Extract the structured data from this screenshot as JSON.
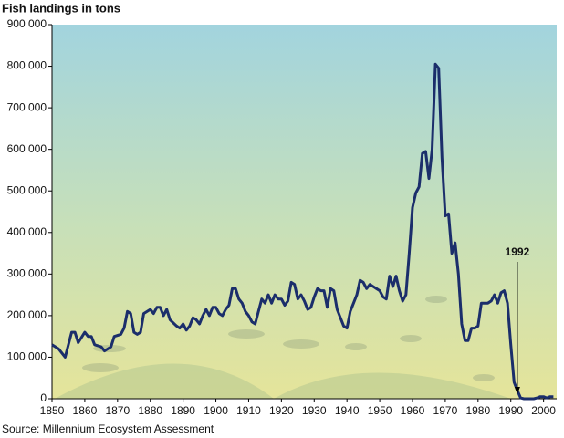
{
  "chart_data": {
    "type": "line",
    "title": "Fish landings in tons",
    "source": "Source: Millennium Ecosystem Assessment",
    "annotation": {
      "text": "1992",
      "x": 1992
    },
    "color": "#1b2e6b",
    "xlim": [
      1850,
      2004
    ],
    "xticks": [
      1850,
      1860,
      1870,
      1880,
      1890,
      1900,
      1910,
      1920,
      1930,
      1940,
      1950,
      1960,
      1970,
      1980,
      1990,
      2000
    ],
    "ylim": [
      0,
      900000
    ],
    "yticks": [
      0,
      {
        "value": 100000,
        "label": "100 000"
      },
      {
        "value": 200000,
        "label": "200 000"
      },
      {
        "value": 300000,
        "label": "300 000"
      },
      {
        "value": 400000,
        "label": "400 000"
      },
      {
        "value": 500000,
        "label": "500 000"
      },
      {
        "value": 600000,
        "label": "600 000"
      },
      {
        "value": 700000,
        "label": "700 000"
      },
      {
        "value": 800000,
        "label": "800 000"
      },
      {
        "value": 900000,
        "label": "900 000"
      }
    ],
    "x": [
      1850,
      1852,
      1854,
      1856,
      1857,
      1858,
      1860,
      1861,
      1862,
      1863,
      1865,
      1866,
      1868,
      1869,
      1871,
      1872,
      1873,
      1874,
      1875,
      1876,
      1877,
      1878,
      1880,
      1881,
      1882,
      1883,
      1884,
      1885,
      1886,
      1888,
      1889,
      1890,
      1891,
      1892,
      1893,
      1894,
      1895,
      1896,
      1897,
      1898,
      1899,
      1900,
      1901,
      1902,
      1903,
      1904,
      1905,
      1906,
      1907,
      1908,
      1909,
      1910,
      1911,
      1912,
      1913,
      1914,
      1915,
      1916,
      1917,
      1918,
      1919,
      1920,
      1921,
      1922,
      1923,
      1924,
      1925,
      1926,
      1927,
      1928,
      1929,
      1930,
      1931,
      1932,
      1933,
      1934,
      1935,
      1936,
      1937,
      1938,
      1939,
      1940,
      1941,
      1942,
      1943,
      1944,
      1945,
      1946,
      1947,
      1948,
      1949,
      1950,
      1951,
      1952,
      1953,
      1954,
      1955,
      1956,
      1957,
      1958,
      1959,
      1960,
      1961,
      1962,
      1963,
      1964,
      1965,
      1966,
      1967,
      1968,
      1969,
      1970,
      1971,
      1972,
      1973,
      1974,
      1975,
      1976,
      1977,
      1978,
      1979,
      1980,
      1981,
      1982,
      1983,
      1984,
      1985,
      1986,
      1987,
      1988,
      1989,
      1990,
      1991,
      1992,
      1993,
      1994,
      1995,
      1996,
      1997,
      1998,
      1999,
      2000,
      2001,
      2002,
      2003
    ],
    "values": [
      130000,
      120000,
      100000,
      160000,
      160000,
      135000,
      160000,
      150000,
      150000,
      130000,
      125000,
      115000,
      125000,
      150000,
      155000,
      170000,
      210000,
      205000,
      160000,
      155000,
      160000,
      205000,
      215000,
      205000,
      220000,
      220000,
      200000,
      215000,
      190000,
      175000,
      170000,
      180000,
      165000,
      175000,
      195000,
      190000,
      180000,
      200000,
      215000,
      200000,
      220000,
      220000,
      205000,
      200000,
      215000,
      225000,
      265000,
      265000,
      240000,
      230000,
      210000,
      200000,
      185000,
      180000,
      210000,
      240000,
      230000,
      250000,
      230000,
      250000,
      240000,
      240000,
      225000,
      235000,
      280000,
      275000,
      240000,
      250000,
      235000,
      215000,
      220000,
      245000,
      265000,
      260000,
      260000,
      220000,
      265000,
      260000,
      215000,
      195000,
      175000,
      170000,
      210000,
      230000,
      250000,
      285000,
      280000,
      265000,
      275000,
      270000,
      265000,
      260000,
      245000,
      240000,
      295000,
      270000,
      295000,
      260000,
      235000,
      250000,
      350000,
      460000,
      495000,
      510000,
      590000,
      595000,
      530000,
      600000,
      805000,
      795000,
      580000,
      440000,
      445000,
      350000,
      375000,
      300000,
      180000,
      140000,
      140000,
      170000,
      170000,
      175000,
      230000,
      230000,
      230000,
      235000,
      250000,
      230000,
      255000,
      260000,
      230000,
      130000,
      40000,
      20000,
      2000,
      0,
      0,
      0,
      0,
      2000,
      5000,
      5000,
      2000,
      5000,
      5000
    ]
  }
}
